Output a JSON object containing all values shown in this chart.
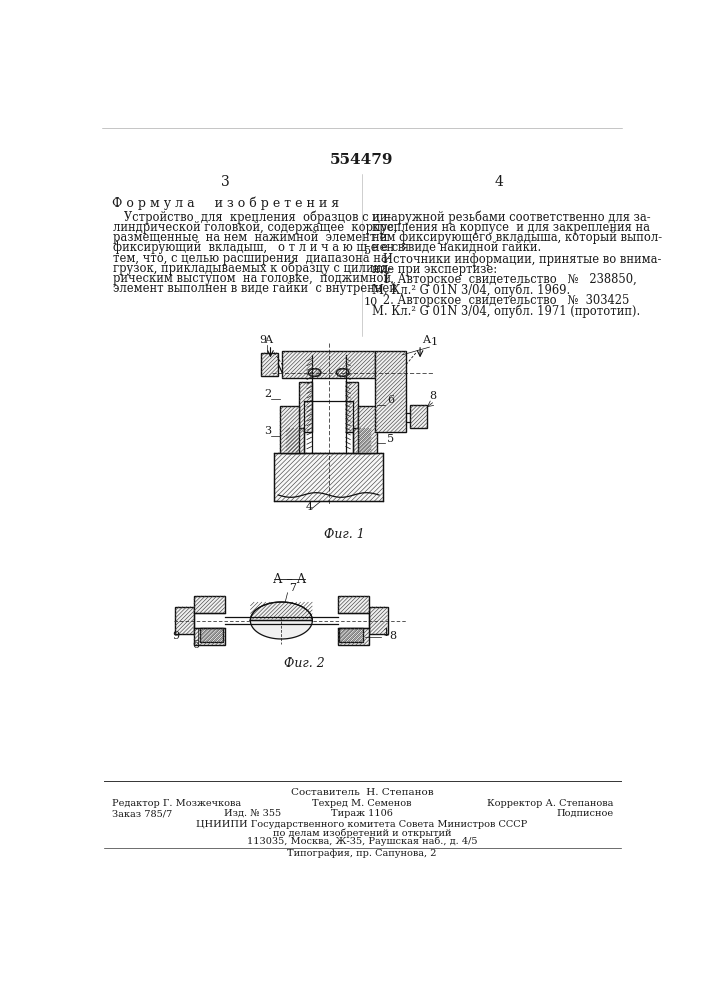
{
  "patent_number": "554479",
  "page_left": "3",
  "page_right": "4",
  "title_formula": "Ф о р м у л а     и з о б р е т е н и я",
  "left_text_lines": [
    "   Устройство  для  крепления  образцов с ци-",
    "линдрической головкой, содержащее  корпус,",
    "размещенные  на нем  нажимной  элемент и",
    "фиксирующий  вкладыш,   о т л и ч а ю щ е е с я",
    "тем, что, с целью расширения  диапазона на-",
    "грузок, прикладываемых к образцу с цилинд-",
    "рическим выступом  на головке,  поджимной",
    "элемент выполнен в виде гайки  с внутренней"
  ],
  "right_text_lines": [
    "и наружной резьбами соответственно для за-",
    "крепления на корпусе  и для закрепления на",
    "нем фиксирующего вкладыша, который выпол-",
    "нен в виде накидной гайки."
  ],
  "sources_lines": [
    "   Источники информации, принятые во внима-",
    "ние при экспертизе:"
  ],
  "ref1_lines": [
    "   1. Авторское  свидетельство   №   238850,",
    "М. Кл.² G 01N 3/04, опубл. 1969."
  ],
  "ref2_lines": [
    "   2. Авторское  свидетельство   №  303425",
    "М. Кл.² G 01N 3/04, опубл. 1971 (прототип)."
  ],
  "fig1_caption": "Фиг. 1",
  "fig2_caption": "Фиг. 2",
  "fig2_section": "А – А",
  "footer_composer": "Составитель  Н. Степанов",
  "footer_editor": "Редактор Г. Мозжечкова",
  "footer_tekhred": "Техред М. Семенов",
  "footer_korrektor": "Корректор А. Степанова",
  "footer_zakaz": "Заказ 785/7",
  "footer_izd": "Изд. № 355",
  "footer_tirazh": "Тираж 1106",
  "footer_podpisnoe": "Подписное",
  "footer_line3": "ЦНИИПИ Государственного комитета Совета Министров СССР",
  "footer_line4": "по делам изобретений и открытий",
  "footer_line5": "113035, Москва, Ж-35, Раушская наб., д. 4/5",
  "footer_line6": "Типография, пр. Сапунова, 2",
  "bg_color": "#ffffff",
  "text_color": "#1a1a1a",
  "hatch_color": "#444444",
  "line_color": "#111111"
}
